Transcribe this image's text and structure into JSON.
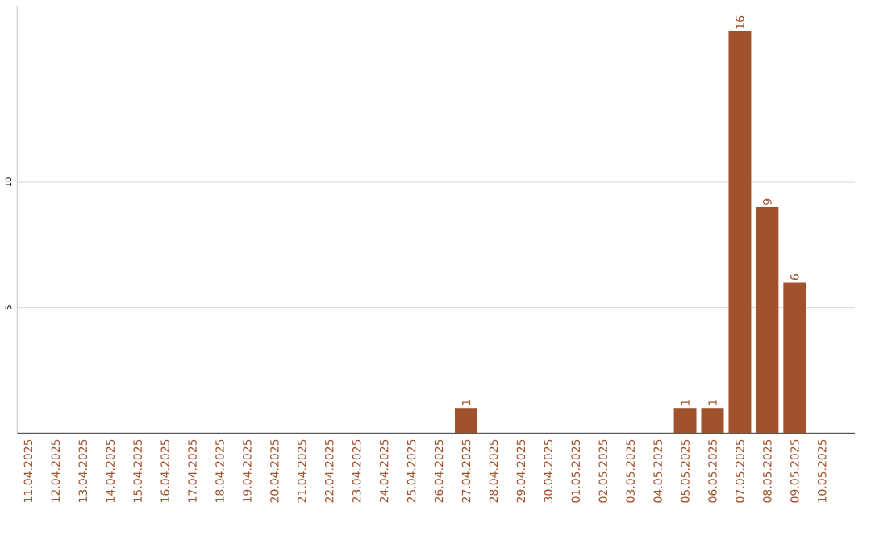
{
  "chart_data": {
    "type": "bar",
    "categories": [
      "11.04.2025",
      "12.04.2025",
      "13.04.2025",
      "14.04.2025",
      "15.04.2025",
      "16.04.2025",
      "17.04.2025",
      "18.04.2025",
      "19.04.2025",
      "20.04.2025",
      "21.04.2025",
      "22.04.2025",
      "23.04.2025",
      "24.04.2025",
      "25.04.2025",
      "26.04.2025",
      "27.04.2025",
      "28.04.2025",
      "29.04.2025",
      "30.04.2025",
      "01.05.2025",
      "02.05.2025",
      "03.05.2025",
      "04.05.2025",
      "05.05.2025",
      "06.05.2025",
      "07.05.2025",
      "08.05.2025",
      "09.05.2025",
      "10.05.2025"
    ],
    "values": [
      0,
      0,
      0,
      0,
      0,
      0,
      0,
      0,
      0,
      0,
      0,
      0,
      0,
      0,
      0,
      0,
      1,
      0,
      0,
      0,
      0,
      0,
      0,
      0,
      1,
      1,
      16,
      9,
      6,
      0
    ],
    "value_labels": [
      null,
      null,
      null,
      null,
      null,
      null,
      null,
      null,
      null,
      null,
      null,
      null,
      null,
      null,
      null,
      null,
      "1",
      null,
      null,
      null,
      null,
      null,
      null,
      null,
      "1",
      "1",
      "16",
      "9",
      "6",
      null
    ],
    "color": "#a0522d",
    "ylim": [
      0,
      17
    ],
    "yticks": [
      5,
      10
    ],
    "grid": "y"
  }
}
